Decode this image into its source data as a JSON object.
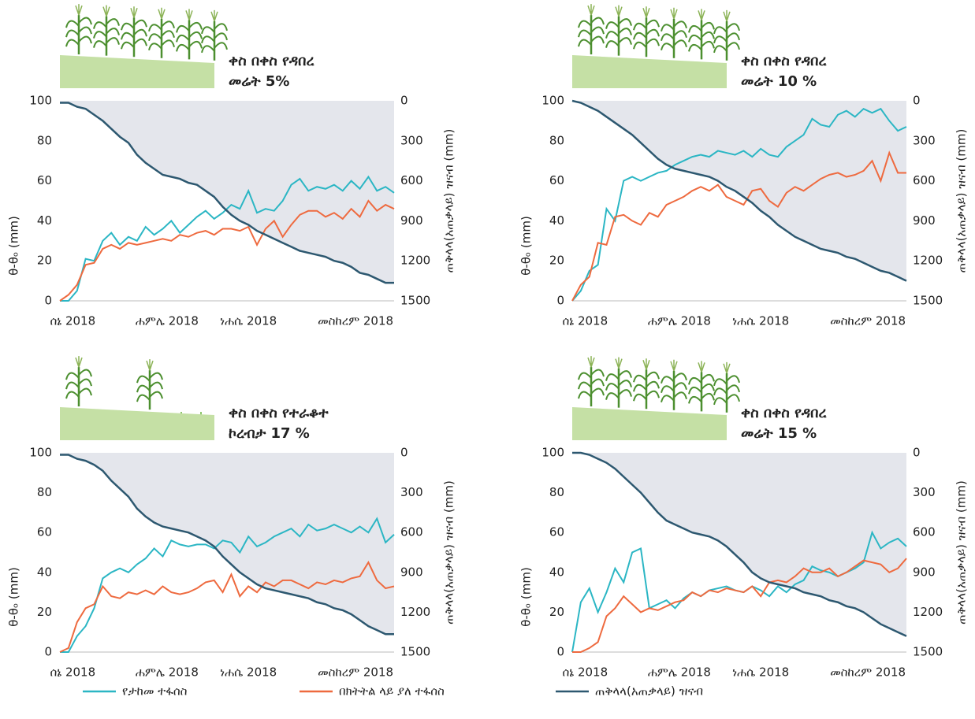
{
  "chart_data": [
    {
      "type": "line",
      "title_lines": [
        "ቀስ በቀስ የዳበረ",
        "መሬት 5%"
      ],
      "ylabel": "θ-θₒ (mm)",
      "y2label": "ጠቅላላ(አጠቃላይ) ዝናብ (mm)",
      "xlim": [
        0,
        39
      ],
      "xticks": [
        {
          "value": 1.5,
          "label": "ሰኔ 2018"
        },
        {
          "value": 12.5,
          "label": "ሐምሌ 2018"
        },
        {
          "value": 22,
          "label": "ነሐሴ 2018"
        },
        {
          "value": 34.5,
          "label": "መስከረም 2018"
        }
      ],
      "ylim": [
        0,
        100
      ],
      "yticks": [
        0,
        20,
        40,
        60,
        80,
        100
      ],
      "y2lim": [
        1500,
        0
      ],
      "y2ticks": [
        0,
        300,
        600,
        900,
        1200,
        1500
      ],
      "series": [
        {
          "color": "#2bb6c4",
          "values": [
            0,
            0,
            5,
            21,
            20,
            30,
            34,
            28,
            32,
            30,
            37,
            33,
            36,
            40,
            34,
            38,
            42,
            45,
            41,
            44,
            48,
            46,
            55,
            44,
            46,
            45,
            50,
            58,
            61,
            55,
            57,
            56,
            58,
            55,
            60,
            56,
            62,
            55,
            57,
            54
          ]
        },
        {
          "color": "#ee6a3f",
          "values": [
            0,
            3,
            8,
            18,
            19,
            26,
            28,
            26,
            29,
            28,
            29,
            30,
            31,
            30,
            33,
            32,
            34,
            35,
            33,
            36,
            36,
            35,
            37,
            28,
            36,
            40,
            32,
            38,
            43,
            45,
            45,
            42,
            44,
            41,
            46,
            42,
            50,
            45,
            48,
            46
          ]
        },
        {
          "color": "#2d5870",
          "axis": "y2",
          "values": [
            15,
            15,
            45,
            60,
            105,
            150,
            210,
            270,
            315,
            405,
            465,
            510,
            555,
            570,
            585,
            615,
            630,
            675,
            720,
            795,
            855,
            900,
            930,
            975,
            1005,
            1035,
            1065,
            1095,
            1125,
            1140,
            1155,
            1170,
            1200,
            1215,
            1245,
            1290,
            1305,
            1335,
            1365,
            1365
          ]
        }
      ]
    },
    {
      "type": "line",
      "title_lines": [
        "ቀስ በቀስ የዳበረ",
        "መሬት 10 %"
      ],
      "ylabel": "θ-θₒ (mm)",
      "y2label": "ጠቅላላ(አጠቃላይ) ዝናብ (mm)",
      "xlim": [
        0,
        39
      ],
      "xticks": [
        {
          "value": 1.5,
          "label": "ሰኔ 2018"
        },
        {
          "value": 12.5,
          "label": "ሐምሌ 2018"
        },
        {
          "value": 22,
          "label": "ነሐሴ 2018"
        },
        {
          "value": 34.5,
          "label": "መስከረም 2018"
        }
      ],
      "ylim": [
        0,
        100
      ],
      "yticks": [
        0,
        20,
        40,
        60,
        80,
        100
      ],
      "y2lim": [
        1500,
        0
      ],
      "y2ticks": [
        0,
        300,
        600,
        900,
        1200,
        1500
      ],
      "series": [
        {
          "color": "#2bb6c4",
          "values": [
            0,
            5,
            15,
            18,
            46,
            40,
            60,
            62,
            60,
            62,
            64,
            65,
            68,
            70,
            72,
            73,
            72,
            75,
            74,
            73,
            75,
            72,
            76,
            73,
            72,
            77,
            80,
            83,
            91,
            88,
            87,
            93,
            95,
            92,
            96,
            94,
            96,
            90,
            85,
            87
          ]
        },
        {
          "color": "#ee6a3f",
          "values": [
            0,
            8,
            12,
            29,
            28,
            42,
            43,
            40,
            38,
            44,
            42,
            48,
            50,
            52,
            55,
            57,
            55,
            58,
            52,
            50,
            48,
            55,
            56,
            50,
            47,
            54,
            57,
            55,
            58,
            61,
            63,
            64,
            62,
            63,
            65,
            70,
            60,
            74,
            64,
            64
          ]
        },
        {
          "color": "#2d5870",
          "axis": "y2",
          "values": [
            0,
            15,
            45,
            75,
            120,
            165,
            210,
            255,
            315,
            375,
            435,
            480,
            510,
            525,
            540,
            555,
            570,
            600,
            645,
            675,
            720,
            765,
            825,
            870,
            930,
            975,
            1020,
            1050,
            1080,
            1110,
            1125,
            1140,
            1170,
            1185,
            1215,
            1245,
            1275,
            1290,
            1320,
            1350
          ]
        }
      ]
    },
    {
      "type": "line",
      "title_lines": [
        "ቀስ በቀስ የተራቆተ",
        "ኮረብታ 17 %"
      ],
      "ylabel": "θ-θₒ (mm)",
      "y2label": "ጠቅላላ(አጠቃላይ) ዝናብ (mm)",
      "xlim": [
        0,
        39
      ],
      "xticks": [
        {
          "value": 1.5,
          "label": "ሰኔ 2018"
        },
        {
          "value": 12.5,
          "label": "ሐምሌ 2018"
        },
        {
          "value": 22,
          "label": "ነሐሴ 2018"
        },
        {
          "value": 34.5,
          "label": "መስከረም 2018"
        }
      ],
      "ylim": [
        0,
        100
      ],
      "yticks": [
        0,
        20,
        40,
        60,
        80,
        100
      ],
      "y2lim": [
        1500,
        0
      ],
      "y2ticks": [
        0,
        300,
        600,
        900,
        1200,
        1500
      ],
      "series": [
        {
          "color": "#2bb6c4",
          "values": [
            0,
            0,
            8,
            13,
            22,
            37,
            40,
            42,
            40,
            44,
            47,
            52,
            48,
            56,
            54,
            53,
            54,
            54,
            52,
            56,
            55,
            50,
            58,
            53,
            55,
            58,
            60,
            62,
            58,
            64,
            61,
            62,
            64,
            62,
            60,
            63,
            60,
            67,
            55,
            59
          ]
        },
        {
          "color": "#ee6a3f",
          "values": [
            0,
            2,
            15,
            22,
            24,
            33,
            28,
            27,
            30,
            29,
            31,
            29,
            33,
            30,
            29,
            30,
            32,
            35,
            36,
            30,
            39,
            28,
            33,
            30,
            35,
            33,
            36,
            36,
            34,
            32,
            35,
            34,
            36,
            35,
            37,
            38,
            45,
            36,
            32,
            33
          ]
        },
        {
          "color": "#2d5870",
          "axis": "y2",
          "values": [
            15,
            15,
            45,
            60,
            90,
            135,
            210,
            270,
            330,
            420,
            480,
            525,
            555,
            570,
            585,
            600,
            630,
            660,
            705,
            780,
            840,
            900,
            945,
            990,
            1020,
            1035,
            1050,
            1065,
            1080,
            1095,
            1125,
            1140,
            1170,
            1185,
            1215,
            1260,
            1305,
            1335,
            1365,
            1365
          ]
        }
      ]
    },
    {
      "type": "line",
      "title_lines": [
        "ቀስ በቀስ የዳበረ",
        "መሬት 15 %"
      ],
      "ylabel": "θ-θₒ (mm)",
      "y2label": "ጠቅላላ(አጠቃላይ) ዝናብ (mm)",
      "xlim": [
        0,
        39
      ],
      "xticks": [
        {
          "value": 1.5,
          "label": "ሰኔ 2018"
        },
        {
          "value": 12.5,
          "label": "ሐምሌ 2018"
        },
        {
          "value": 22,
          "label": "ነሐሴ 2018"
        },
        {
          "value": 34.5,
          "label": "መስከረም 2018"
        }
      ],
      "ylim": [
        0,
        100
      ],
      "yticks": [
        0,
        20,
        40,
        60,
        80,
        100
      ],
      "y2lim": [
        1500,
        0
      ],
      "y2ticks": [
        0,
        300,
        600,
        900,
        1200,
        1500
      ],
      "series": [
        {
          "color": "#2bb6c4",
          "values": [
            0,
            25,
            32,
            20,
            30,
            42,
            35,
            50,
            52,
            22,
            24,
            26,
            22,
            27,
            30,
            28,
            31,
            32,
            33,
            31,
            30,
            33,
            31,
            28,
            33,
            30,
            34,
            36,
            43,
            41,
            40,
            38,
            40,
            42,
            45,
            60,
            52,
            55,
            57,
            53
          ]
        },
        {
          "color": "#ee6a3f",
          "values": [
            0,
            0,
            2,
            5,
            18,
            22,
            28,
            24,
            20,
            22,
            21,
            23,
            25,
            26,
            30,
            28,
            31,
            30,
            32,
            31,
            30,
            33,
            28,
            35,
            36,
            35,
            38,
            42,
            40,
            40,
            42,
            38,
            40,
            43,
            46,
            45,
            44,
            40,
            42,
            47
          ]
        },
        {
          "color": "#2d5870",
          "axis": "y2",
          "values": [
            0,
            0,
            15,
            45,
            75,
            120,
            180,
            240,
            300,
            375,
            450,
            510,
            540,
            570,
            600,
            615,
            630,
            660,
            705,
            765,
            825,
            900,
            945,
            975,
            990,
            1005,
            1020,
            1050,
            1065,
            1080,
            1110,
            1125,
            1155,
            1170,
            1200,
            1245,
            1290,
            1320,
            1350,
            1380
          ]
        }
      ]
    }
  ],
  "legend": [
    {
      "name": "የታከመ ተፋሰስ",
      "color": "#2bb6c4"
    },
    {
      "name": "በክትትል ላይ ያለ ተፋሰስ",
      "color": "#ee6a3f"
    },
    {
      "name": "ጠቅላላ(አጠቃላይ) ዝናብ",
      "color": "#2d5870"
    }
  ]
}
